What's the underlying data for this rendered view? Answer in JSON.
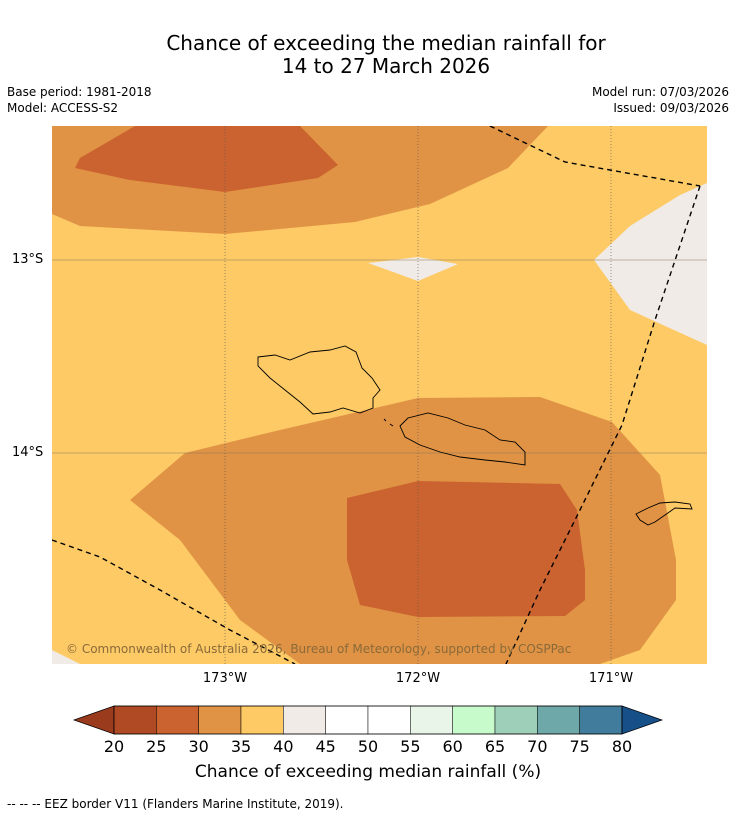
{
  "title_line1": "Chance of exceeding the median rainfall for",
  "title_line2": "14 to 27 March 2026",
  "base_period": "Base period: 1981-2018",
  "model": "Model: ACCESS-S2",
  "model_run": "Model run: 07/03/2026",
  "issued": "Issued: 09/03/2026",
  "latitude_labels": [
    "13°S",
    "14°S"
  ],
  "longitude_labels": [
    "173°W",
    "172°W",
    "171°W"
  ],
  "copyright": "© Commonwealth of Australia 2026, Bureau of Meteorology, supported by COSPPac",
  "colorbar": {
    "label": "Chance of exceeding median rainfall (%)",
    "ticks": [
      "20",
      "25",
      "30",
      "35",
      "40",
      "45",
      "50",
      "55",
      "60",
      "65",
      "70",
      "75",
      "80"
    ],
    "colors": [
      "#b04a24",
      "#cb6330",
      "#e09344",
      "#fdca66",
      "#f0ebe6",
      "#ffffff",
      "#ffffff",
      "#e8f5e8",
      "#c8fbcc",
      "#9dcfb9",
      "#6fa8a8",
      "#417c9c"
    ],
    "under_color": "#9b3b1e",
    "over_color": "#174f88"
  },
  "legend_text": "--  --  -- EEZ border V11 (Flanders Marine Institute, 2019)."
}
